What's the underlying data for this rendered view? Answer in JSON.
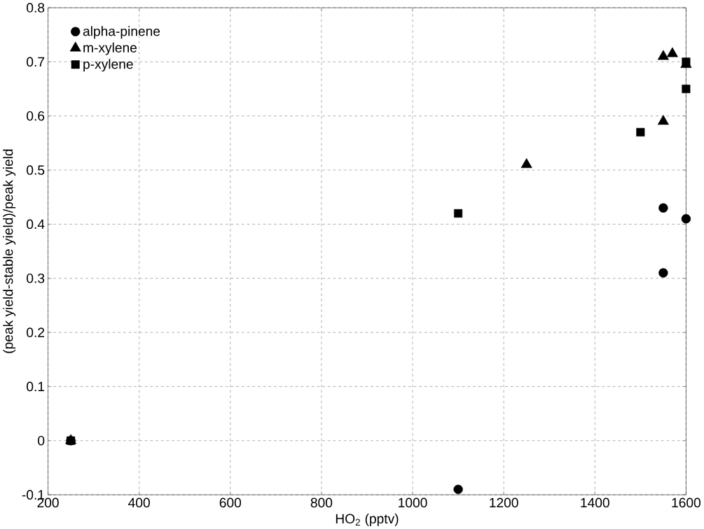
{
  "chart_data": {
    "type": "scatter",
    "xlabel": "HO$_{2}$ (pptv)",
    "ylabel": "(peak yield-stable yield)/peak yield",
    "xlim": [
      200,
      1600
    ],
    "xticks": [
      200,
      400,
      600,
      800,
      1000,
      1200,
      1400,
      1600
    ],
    "ylim": [
      -0.1,
      0.8
    ],
    "yticks": [
      -0.1,
      0,
      0.1,
      0.2,
      0.3,
      0.4,
      0.5,
      0.6,
      0.7,
      0.8
    ],
    "grid": true,
    "legend": "top left",
    "series": [
      {
        "name": "alpha-pinene",
        "color": "#000000",
        "marker": "circle",
        "x": [
          250,
          1100,
          1550,
          1550,
          1600
        ],
        "values": [
          0,
          -0.09,
          0.43,
          0.31,
          0.41
        ]
      },
      {
        "name": "m-xylene",
        "color": "#000000",
        "marker": "triangle",
        "x": [
          250,
          1250,
          1550,
          1570,
          1550,
          1600
        ],
        "values": [
          0,
          0.51,
          0.71,
          0.715,
          0.59,
          0.695
        ]
      },
      {
        "name": "p-xylene",
        "color": "#000000",
        "marker": "square",
        "x": [
          250,
          1100,
          1500,
          1600,
          1600
        ],
        "values": [
          0,
          0.42,
          0.57,
          0.7,
          0.65
        ]
      }
    ]
  }
}
